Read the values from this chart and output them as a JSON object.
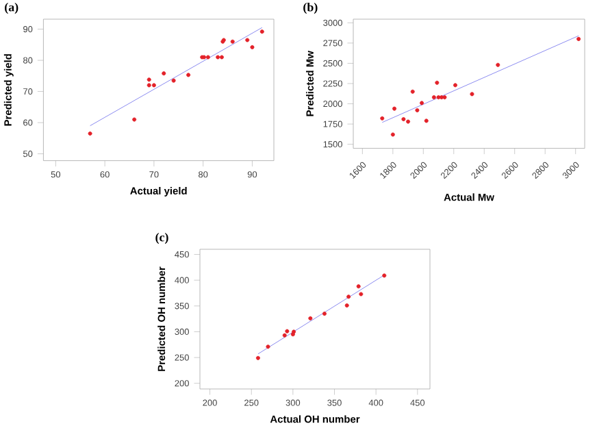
{
  "chart_data": [
    {
      "type": "scatter",
      "title": "(a)",
      "xlabel": "Actual yield",
      "ylabel": "Predicted yield",
      "xlim": [
        47.5,
        94.4
      ],
      "ylim": [
        47.8,
        93.2
      ],
      "xticks": [
        50,
        60,
        70,
        80,
        90
      ],
      "yticks": [
        50,
        60,
        70,
        80,
        90
      ],
      "grid": false,
      "series": [
        {
          "color": "#e3222a",
          "marker": "circle",
          "x": [
            57,
            66,
            69,
            69,
            70,
            72,
            74,
            77,
            79.8,
            80.2,
            81,
            83,
            83.8,
            84,
            84.2,
            86,
            89,
            90,
            92
          ],
          "values": [
            56.5,
            61,
            73.8,
            72,
            72,
            75.8,
            73.5,
            75.3,
            81,
            81,
            81,
            81,
            81,
            86,
            86.5,
            86,
            86.5,
            84.2,
            89.2
          ]
        },
        {
          "type": "line",
          "color": "#8c8cf0",
          "x": [
            57,
            92
          ],
          "values": [
            59,
            90.5
          ]
        }
      ]
    },
    {
      "type": "scatter",
      "title": "(b)",
      "xlabel": "Actual Mw",
      "ylabel": "Predicted Mw",
      "xlim": [
        1540,
        3060
      ],
      "ylim": [
        1450,
        3045
      ],
      "xticks": [
        1600,
        1800,
        2000,
        2200,
        2400,
        2600,
        2800,
        3000
      ],
      "yticks": [
        1500,
        1750,
        2000,
        2250,
        2500,
        2750,
        3000
      ],
      "grid": false,
      "series": [
        {
          "color": "#e3222a",
          "marker": "circle",
          "x": [
            1730,
            1800,
            1810,
            1870,
            1900,
            1930,
            1960,
            1990,
            2020,
            2090,
            2070,
            2100,
            2120,
            2140,
            2210,
            2320,
            2490,
            3020
          ],
          "values": [
            1820,
            1620,
            1940,
            1810,
            1780,
            2150,
            1920,
            2010,
            1790,
            2260,
            2080,
            2080,
            2080,
            2080,
            2230,
            2120,
            2480,
            2800
          ]
        },
        {
          "type": "line",
          "color": "#8c8cf0",
          "x": [
            1730,
            3020
          ],
          "values": [
            1770,
            2840
          ]
        }
      ]
    },
    {
      "type": "scatter",
      "title": "(c)",
      "xlabel": "Actual OH number",
      "ylabel": "Predicted OH number",
      "xlim": [
        188,
        465
      ],
      "ylim": [
        189,
        460
      ],
      "xticks": [
        200,
        250,
        300,
        350,
        400,
        450
      ],
      "yticks": [
        200,
        250,
        300,
        350,
        400,
        450
      ],
      "grid": false,
      "series": [
        {
          "color": "#e3222a",
          "marker": "circle",
          "x": [
            258,
            270,
            290,
            293,
            300,
            301,
            321,
            338,
            365,
            367,
            379,
            382,
            410
          ],
          "values": [
            249,
            271,
            293,
            301,
            295,
            300,
            326,
            335,
            351,
            368,
            388,
            373,
            409
          ]
        },
        {
          "type": "line",
          "color": "#8c8cf0",
          "x": [
            258,
            410
          ],
          "values": [
            257,
            410
          ]
        }
      ]
    }
  ]
}
